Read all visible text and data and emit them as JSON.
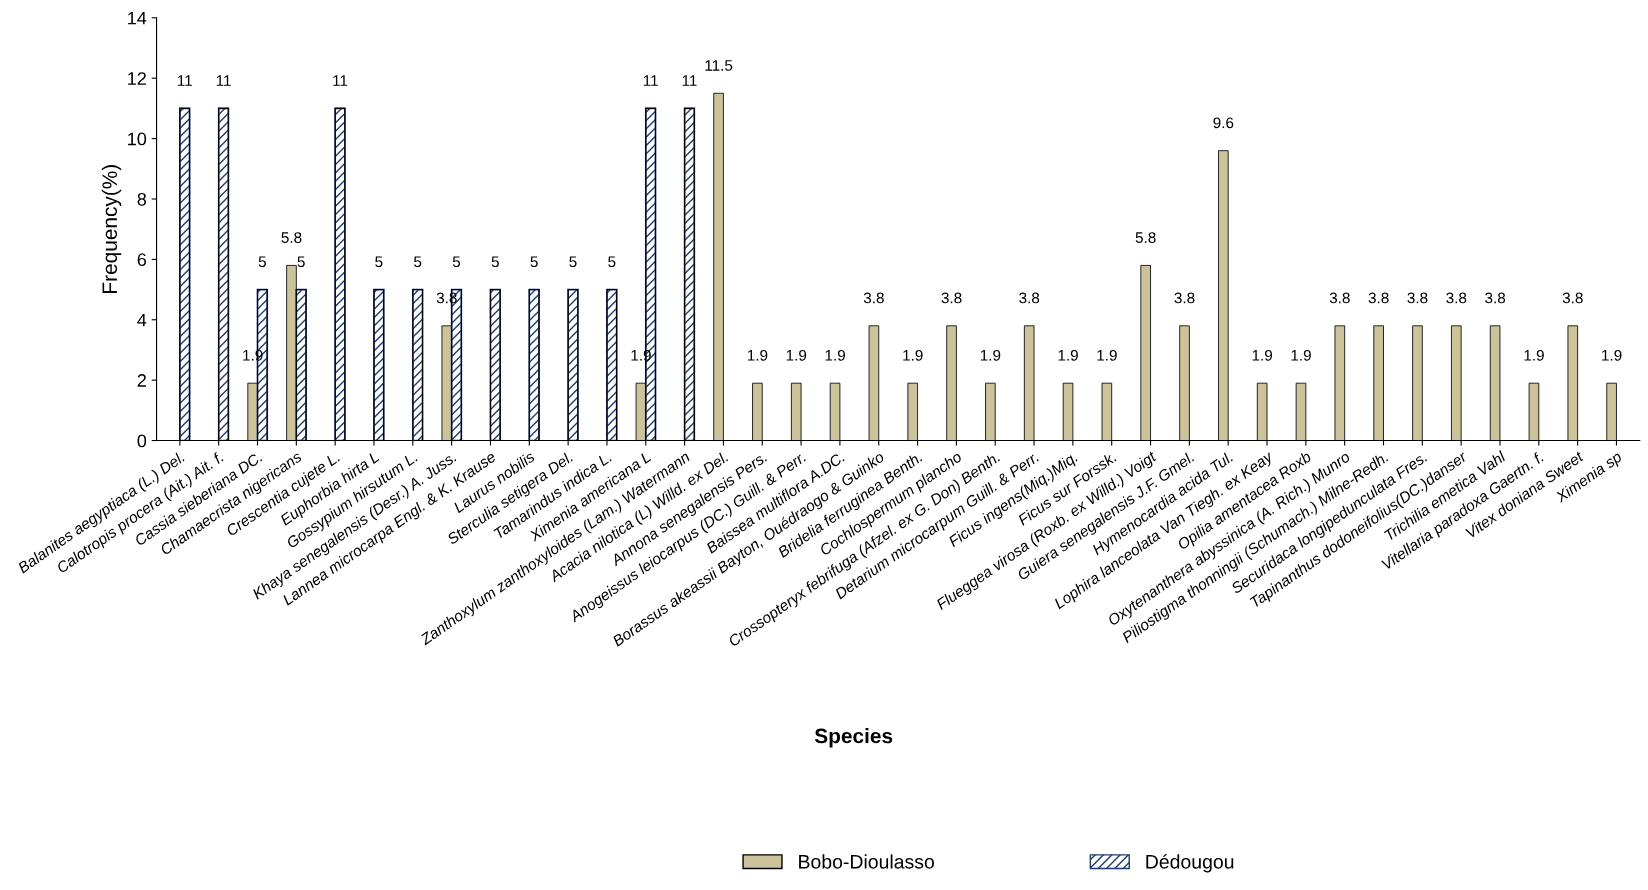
{
  "chart_data": {
    "type": "bar",
    "xlabel": "Species",
    "ylabel": "Frequency(%)",
    "categories": [
      "Balanites aegyptiaca (L.) Del.",
      "Calotropis procera (Ait.) Ait. f.",
      "Cassia sieberiana DC.",
      "Chamaecrista nigericans",
      "Crescentia cujete L.",
      "Euphorbia hirta L",
      "Gossypium hirsutum L.",
      "Khaya senegalensis (Desr.) A. Juss.",
      "Lannea microcarpa Engl. & K. Krause",
      "Laurus nobilis",
      "Sterculia setigera Del.",
      "Tamarindus indica L.",
      "Ximenia americana L",
      "Zanthoxylum zanthoxyloides (Lam.) Watermann",
      "Acacia nilotica (L) Willd. ex Del.",
      "Annona senegalensis Pers.",
      "Anogeissus leiocarpus (DC.) Guill. & Perr.",
      "Baissea multiflora A.DC.",
      "Borassus akeassii Bayton, Ouédraogo & Guinko",
      "Bridelia ferruginea Benth.",
      "Cochlospermum plancho",
      "Crossopteryx febrifuga (Afzel. ex G. Don) Benth.",
      "Detarium microcarpum Guill. & Perr.",
      "Ficus ingens(Miq.)Miq.",
      "Ficus sur Forssk.",
      "Flueggea virosa (Roxb. ex Willd.) Voigt",
      "Guiera senegalensis J.F. Gmel.",
      "Hymenocardia acida Tul.",
      "Lophira lanceolata Van Tiegh. ex Keay",
      "Opilia amentacea Roxb",
      "Oxytenanthera abyssinica (A. Rich.) Munro",
      "Piliostigma thonningii (Schumach.) Milne-Redh.",
      "Securidaca longipedunculata Fres.",
      "Tapinanthus dodoneifolius(DC.)danser",
      "Trichilia emetica Vahl",
      "Vitellaria paradoxa Gaertn. f.",
      "Vitex doniana Sweet",
      "Ximenia sp"
    ],
    "series": [
      {
        "name": "Bobo-Dioulasso",
        "color": "#cdc39a",
        "values": [
          null,
          null,
          1.9,
          5.8,
          null,
          null,
          null,
          3.8,
          null,
          null,
          null,
          null,
          1.9,
          null,
          11.5,
          1.9,
          1.9,
          1.9,
          3.8,
          1.9,
          3.8,
          1.9,
          3.8,
          1.9,
          1.9,
          5.8,
          3.8,
          9.6,
          1.9,
          1.9,
          3.8,
          3.8,
          3.8,
          3.8,
          3.8,
          1.9,
          3.8,
          1.9
        ]
      },
      {
        "name": "Dédougou",
        "color": "#1f3a6e",
        "values": [
          11,
          11,
          5,
          5,
          11,
          5,
          5,
          5,
          5,
          5,
          5,
          5,
          11,
          11,
          null,
          null,
          null,
          null,
          null,
          null,
          null,
          null,
          null,
          null,
          null,
          null,
          null,
          null,
          null,
          null,
          null,
          null,
          null,
          null,
          null,
          null,
          null,
          null
        ]
      }
    ],
    "ylim": [
      0,
      14
    ],
    "yticks": [
      0,
      2,
      4,
      6,
      8,
      10,
      12,
      14
    ],
    "data_labels": true,
    "grid": false,
    "legend": "bottom"
  }
}
